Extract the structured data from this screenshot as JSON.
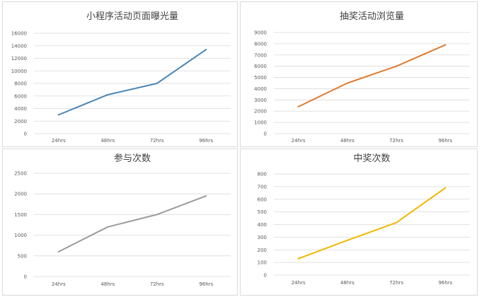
{
  "chart_data": [
    {
      "type": "line",
      "title": "小程序活动页面曝光量",
      "categories": [
        "24hrs",
        "48hrs",
        "72hrs",
        "96hrs"
      ],
      "series": [
        {
          "values": [
            3000,
            6200,
            8000,
            13400
          ]
        }
      ],
      "ylim": [
        0,
        16000
      ],
      "yticks": [
        0,
        2000,
        4000,
        6000,
        8000,
        10000,
        12000,
        14000,
        16000
      ],
      "color": "#4a86b8",
      "grid": true
    },
    {
      "type": "line",
      "title": "抽奖活动浏览量",
      "categories": [
        "24hrs",
        "48hrs",
        "72hrs",
        "96hrs"
      ],
      "series": [
        {
          "values": [
            2400,
            4500,
            6000,
            7900
          ]
        }
      ],
      "ylim": [
        0,
        9000
      ],
      "yticks": [
        0,
        1000,
        2000,
        3000,
        4000,
        5000,
        6000,
        7000,
        8000,
        9000
      ],
      "color": "#e07b30",
      "grid": true
    },
    {
      "type": "line",
      "title": "参与次数",
      "categories": [
        "24hrs",
        "48hrs",
        "72hrs",
        "96hrs"
      ],
      "series": [
        {
          "values": [
            600,
            1200,
            1500,
            1950
          ]
        }
      ],
      "ylim": [
        0,
        2500
      ],
      "yticks": [
        0,
        500,
        1000,
        1500,
        2000,
        2500
      ],
      "color": "#9b9b9b",
      "grid": true
    },
    {
      "type": "line",
      "title": "中奖次数",
      "categories": [
        "24hrs",
        "48hrs",
        "72hrs",
        "96hrs"
      ],
      "series": [
        {
          "values": [
            130,
            275,
            415,
            690
          ]
        }
      ],
      "ylim": [
        0,
        800
      ],
      "yticks": [
        0,
        100,
        200,
        300,
        400,
        500,
        600,
        700,
        800
      ],
      "color": "#f2b800",
      "grid": true
    }
  ]
}
